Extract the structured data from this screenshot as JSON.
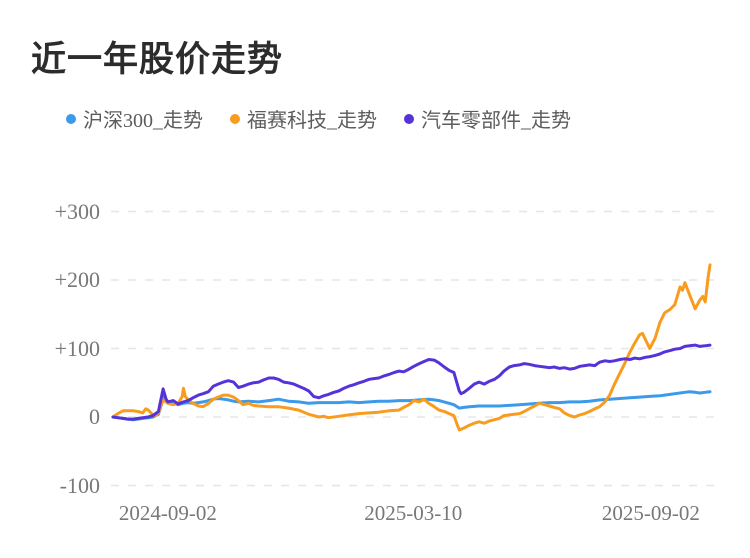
{
  "title": "近一年股价走势",
  "chart_data": {
    "type": "line",
    "title": "近一年股价走势",
    "legend_position": "top",
    "grid": "dashed-horizontal",
    "x_axis": {
      "tick_labels": [
        "2024-09-02",
        "2025-03-10",
        "2025-09-02"
      ],
      "tick_positions_pct": [
        9.2,
        50.3,
        90.1
      ],
      "range_pct": [
        0,
        100
      ]
    },
    "y_axis": {
      "tick_labels": [
        "+300",
        "+200",
        "+100",
        "0",
        "-100"
      ],
      "tick_values": [
        300,
        200,
        100,
        0,
        -100
      ],
      "ylim": [
        -100,
        300
      ],
      "unit": "percent_change"
    },
    "series": [
      {
        "name": "沪深300_走势",
        "color": "#3b9ae9",
        "points": [
          [
            0,
            0
          ],
          [
            0.8,
            -1
          ],
          [
            1.7,
            -2
          ],
          [
            2.5,
            -3
          ],
          [
            3.4,
            -4
          ],
          [
            4.2,
            -3
          ],
          [
            5,
            -2
          ],
          [
            5.9,
            -1
          ],
          [
            6.7,
            0
          ],
          [
            7.6,
            4
          ],
          [
            8.1,
            18
          ],
          [
            8.4,
            30
          ],
          [
            8.9,
            24
          ],
          [
            9.2,
            20
          ],
          [
            10.1,
            21
          ],
          [
            10.9,
            18
          ],
          [
            11.8,
            20
          ],
          [
            12.6,
            21
          ],
          [
            13.4,
            20
          ],
          [
            14.3,
            21
          ],
          [
            15.1,
            22
          ],
          [
            16,
            24
          ],
          [
            16.8,
            26
          ],
          [
            17.6,
            27
          ],
          [
            18.5,
            26
          ],
          [
            19.3,
            25
          ],
          [
            20.2,
            23
          ],
          [
            21,
            22
          ],
          [
            22.7,
            23
          ],
          [
            24.4,
            22
          ],
          [
            26.1,
            24
          ],
          [
            27.7,
            26
          ],
          [
            29.4,
            23
          ],
          [
            31.1,
            22
          ],
          [
            32.8,
            20
          ],
          [
            34.5,
            21
          ],
          [
            36.1,
            21
          ],
          [
            37.8,
            21
          ],
          [
            39.5,
            22
          ],
          [
            41.2,
            21
          ],
          [
            42.9,
            22
          ],
          [
            44.5,
            23
          ],
          [
            46.2,
            23
          ],
          [
            47.9,
            24
          ],
          [
            49.6,
            24
          ],
          [
            51.3,
            25
          ],
          [
            52.9,
            26
          ],
          [
            53.8,
            25
          ],
          [
            54.6,
            24
          ],
          [
            56.3,
            20
          ],
          [
            57.1,
            18
          ],
          [
            58,
            13
          ],
          [
            58.8,
            14
          ],
          [
            59.7,
            15
          ],
          [
            61.3,
            16
          ],
          [
            63,
            16
          ],
          [
            64.7,
            16
          ],
          [
            66.4,
            17
          ],
          [
            68.1,
            18
          ],
          [
            69.7,
            19
          ],
          [
            71.4,
            20
          ],
          [
            73.1,
            21
          ],
          [
            74.8,
            21
          ],
          [
            76.5,
            22
          ],
          [
            78.2,
            22
          ],
          [
            79.8,
            23
          ],
          [
            81.5,
            25
          ],
          [
            83.2,
            26
          ],
          [
            84.9,
            27
          ],
          [
            86.6,
            28
          ],
          [
            88.2,
            29
          ],
          [
            89.9,
            30
          ],
          [
            91.6,
            31
          ],
          [
            92.4,
            32
          ],
          [
            93.3,
            33
          ],
          [
            94.1,
            34
          ],
          [
            95,
            35
          ],
          [
            95.8,
            36
          ],
          [
            96.6,
            37
          ],
          [
            97.5,
            36
          ],
          [
            98.3,
            35
          ],
          [
            99.2,
            36
          ],
          [
            100,
            37
          ]
        ]
      },
      {
        "name": "福赛科技_走势",
        "color": "#f99c1e",
        "points": [
          [
            0,
            0
          ],
          [
            0.8,
            5
          ],
          [
            1.7,
            9
          ],
          [
            2.5,
            9
          ],
          [
            3.4,
            9
          ],
          [
            4.2,
            8
          ],
          [
            5,
            6
          ],
          [
            5.5,
            12
          ],
          [
            5.9,
            10
          ],
          [
            6.7,
            3
          ],
          [
            7.1,
            2
          ],
          [
            7.6,
            6
          ],
          [
            8.4,
            25
          ],
          [
            8.9,
            22
          ],
          [
            9.2,
            20
          ],
          [
            10.1,
            18
          ],
          [
            10.9,
            20
          ],
          [
            11.6,
            30
          ],
          [
            11.8,
            42
          ],
          [
            12.1,
            30
          ],
          [
            12.6,
            25
          ],
          [
            13.4,
            20
          ],
          [
            14.3,
            16
          ],
          [
            15.1,
            15
          ],
          [
            16,
            20
          ],
          [
            16.8,
            26
          ],
          [
            17.6,
            29
          ],
          [
            18.5,
            32
          ],
          [
            19.3,
            32
          ],
          [
            20.2,
            29
          ],
          [
            21,
            24
          ],
          [
            21.8,
            18
          ],
          [
            22.7,
            20
          ],
          [
            23.5,
            17
          ],
          [
            24.4,
            16
          ],
          [
            26.1,
            15
          ],
          [
            27.7,
            15
          ],
          [
            29.4,
            13
          ],
          [
            31.1,
            10
          ],
          [
            32.8,
            4
          ],
          [
            34.5,
            0
          ],
          [
            35.3,
            1
          ],
          [
            36.1,
            -1
          ],
          [
            37.8,
            1
          ],
          [
            39.5,
            3
          ],
          [
            41.2,
            5
          ],
          [
            42.9,
            6
          ],
          [
            44.5,
            7
          ],
          [
            46.2,
            9
          ],
          [
            47.9,
            10
          ],
          [
            48.7,
            14
          ],
          [
            49.6,
            18
          ],
          [
            50.4,
            24
          ],
          [
            51.3,
            22
          ],
          [
            52.1,
            26
          ],
          [
            52.9,
            20
          ],
          [
            53.8,
            15
          ],
          [
            54.6,
            10
          ],
          [
            55.5,
            8
          ],
          [
            56.3,
            5
          ],
          [
            57.1,
            2
          ],
          [
            57.6,
            -10
          ],
          [
            58,
            -19
          ],
          [
            58.8,
            -16
          ],
          [
            59.7,
            -12
          ],
          [
            60.5,
            -9
          ],
          [
            61.3,
            -7
          ],
          [
            62.2,
            -9
          ],
          [
            63,
            -6
          ],
          [
            63.9,
            -4
          ],
          [
            64.7,
            -2
          ],
          [
            65.5,
            2
          ],
          [
            66.4,
            3
          ],
          [
            67.2,
            4
          ],
          [
            68.1,
            5
          ],
          [
            68.9,
            8
          ],
          [
            69.7,
            12
          ],
          [
            70.6,
            16
          ],
          [
            71.4,
            20
          ],
          [
            72.3,
            18
          ],
          [
            73.1,
            16
          ],
          [
            73.9,
            14
          ],
          [
            74.8,
            12
          ],
          [
            75.6,
            6
          ],
          [
            76.5,
            2
          ],
          [
            77.3,
            0
          ],
          [
            78.2,
            3
          ],
          [
            79,
            5
          ],
          [
            79.8,
            8
          ],
          [
            80.7,
            12
          ],
          [
            81.5,
            15
          ],
          [
            82.4,
            22
          ],
          [
            83.2,
            32
          ],
          [
            84,
            48
          ],
          [
            84.9,
            64
          ],
          [
            85.7,
            78
          ],
          [
            86.6,
            95
          ],
          [
            87.4,
            108
          ],
          [
            88.2,
            120
          ],
          [
            88.7,
            122
          ],
          [
            89.9,
            100
          ],
          [
            90.8,
            115
          ],
          [
            91.6,
            138
          ],
          [
            92.4,
            152
          ],
          [
            93.3,
            157
          ],
          [
            94.1,
            164
          ],
          [
            95,
            190
          ],
          [
            95.4,
            185
          ],
          [
            95.8,
            196
          ],
          [
            96.6,
            178
          ],
          [
            97.5,
            158
          ],
          [
            98.3,
            171
          ],
          [
            98.8,
            176
          ],
          [
            99.2,
            168
          ],
          [
            99.7,
            205
          ],
          [
            100,
            222
          ]
        ]
      },
      {
        "name": "汽车零部件_走势",
        "color": "#5533d9",
        "points": [
          [
            0,
            0
          ],
          [
            0.8,
            -1
          ],
          [
            1.7,
            -2
          ],
          [
            2.5,
            -3
          ],
          [
            3.4,
            -3
          ],
          [
            4.2,
            -2
          ],
          [
            5,
            -1
          ],
          [
            5.9,
            0
          ],
          [
            6.7,
            2
          ],
          [
            7.6,
            8
          ],
          [
            8.4,
            41
          ],
          [
            8.9,
            26
          ],
          [
            9.2,
            22
          ],
          [
            10.1,
            24
          ],
          [
            10.9,
            19
          ],
          [
            11.8,
            22
          ],
          [
            12.6,
            24
          ],
          [
            13.4,
            28
          ],
          [
            14.3,
            32
          ],
          [
            15.1,
            34
          ],
          [
            16,
            37
          ],
          [
            16.8,
            45
          ],
          [
            17.6,
            48
          ],
          [
            18.5,
            51
          ],
          [
            19.3,
            53
          ],
          [
            20.2,
            51
          ],
          [
            21,
            43
          ],
          [
            21.8,
            45
          ],
          [
            22.7,
            48
          ],
          [
            23.5,
            50
          ],
          [
            24.4,
            51
          ],
          [
            25.2,
            54
          ],
          [
            26.1,
            57
          ],
          [
            26.9,
            57
          ],
          [
            27.7,
            55
          ],
          [
            28.6,
            51
          ],
          [
            29.4,
            50
          ],
          [
            30.3,
            48
          ],
          [
            31.1,
            45
          ],
          [
            31.9,
            42
          ],
          [
            32.8,
            38
          ],
          [
            33.6,
            30
          ],
          [
            34.5,
            28
          ],
          [
            35.3,
            31
          ],
          [
            36.1,
            33
          ],
          [
            37,
            36
          ],
          [
            37.8,
            38
          ],
          [
            38.7,
            42
          ],
          [
            39.5,
            45
          ],
          [
            40.3,
            47
          ],
          [
            41.2,
            50
          ],
          [
            42,
            52
          ],
          [
            42.9,
            55
          ],
          [
            43.7,
            56
          ],
          [
            44.5,
            57
          ],
          [
            45.4,
            60
          ],
          [
            46.2,
            62
          ],
          [
            47.1,
            65
          ],
          [
            47.9,
            67
          ],
          [
            48.7,
            66
          ],
          [
            49.6,
            70
          ],
          [
            50.4,
            74
          ],
          [
            51.3,
            78
          ],
          [
            52.1,
            81
          ],
          [
            52.9,
            84
          ],
          [
            53.8,
            83
          ],
          [
            54.6,
            79
          ],
          [
            55.5,
            73
          ],
          [
            56.3,
            68
          ],
          [
            57.1,
            65
          ],
          [
            57.6,
            50
          ],
          [
            58,
            38
          ],
          [
            58.3,
            34
          ],
          [
            58.8,
            36
          ],
          [
            59.7,
            42
          ],
          [
            60.5,
            48
          ],
          [
            61.3,
            51
          ],
          [
            62.2,
            48
          ],
          [
            63,
            52
          ],
          [
            63.9,
            55
          ],
          [
            64.7,
            60
          ],
          [
            65.5,
            67
          ],
          [
            66.4,
            73
          ],
          [
            67.2,
            75
          ],
          [
            68.1,
            76
          ],
          [
            68.9,
            78
          ],
          [
            69.7,
            77
          ],
          [
            70.6,
            75
          ],
          [
            71.4,
            74
          ],
          [
            72.3,
            73
          ],
          [
            73.1,
            72
          ],
          [
            73.9,
            73
          ],
          [
            74.8,
            71
          ],
          [
            75.6,
            72
          ],
          [
            76.5,
            70
          ],
          [
            77.3,
            71
          ],
          [
            78.2,
            74
          ],
          [
            79,
            75
          ],
          [
            79.8,
            76
          ],
          [
            80.7,
            75
          ],
          [
            81.5,
            80
          ],
          [
            82.4,
            82
          ],
          [
            83.2,
            81
          ],
          [
            84,
            82
          ],
          [
            84.9,
            84
          ],
          [
            85.7,
            85
          ],
          [
            86.6,
            84
          ],
          [
            87.4,
            86
          ],
          [
            88.2,
            85
          ],
          [
            89.1,
            87
          ],
          [
            89.9,
            88
          ],
          [
            90.8,
            90
          ],
          [
            91.6,
            92
          ],
          [
            92.4,
            95
          ],
          [
            93.3,
            97
          ],
          [
            94.1,
            99
          ],
          [
            95,
            100
          ],
          [
            95.8,
            103
          ],
          [
            96.6,
            104
          ],
          [
            97.5,
            105
          ],
          [
            98.3,
            103
          ],
          [
            99.2,
            104
          ],
          [
            100,
            105
          ]
        ]
      }
    ],
    "style": {
      "line_width": 3,
      "grid_color": "#e6e6e6",
      "axis_text_color": "#787878",
      "title_color": "#2c2c2c",
      "legend_text_color": "#5c5c5c",
      "background": "#ffffff"
    }
  }
}
